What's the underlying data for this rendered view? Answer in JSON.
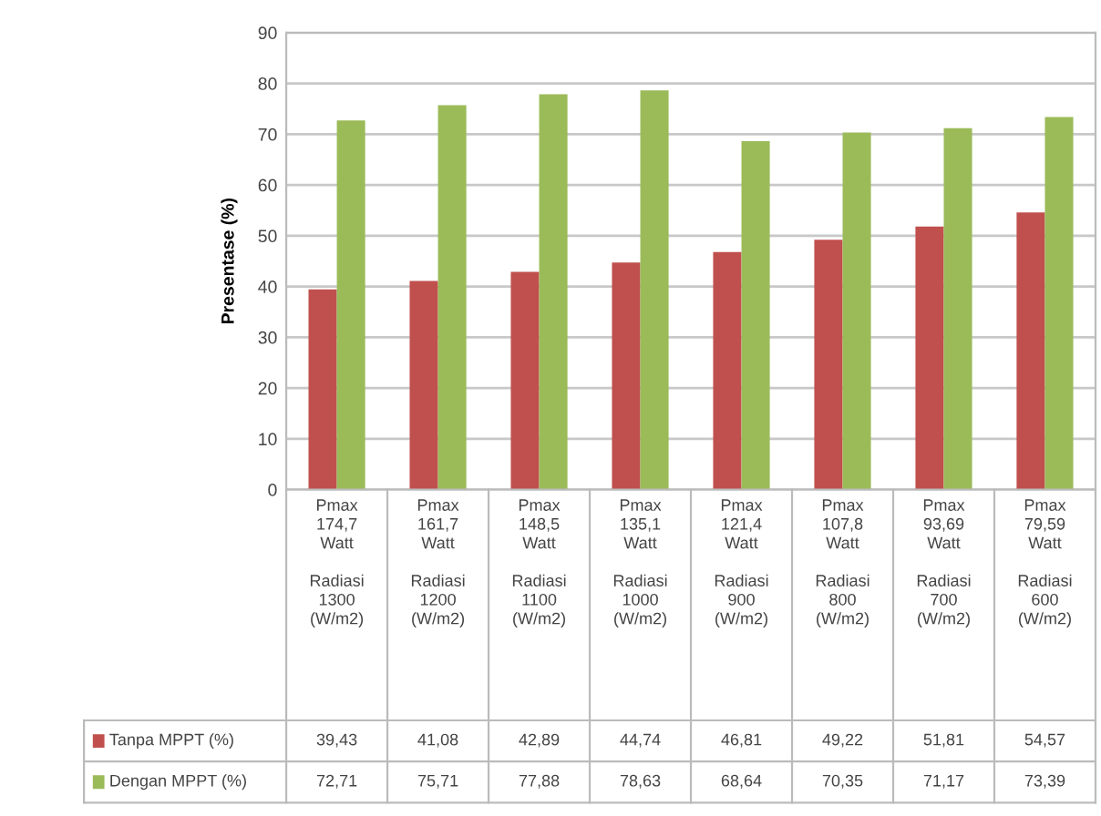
{
  "chart_data": {
    "type": "bar",
    "ylabel": "Presentase (%)",
    "categories": [
      "Pmax\n174,7\nWatt\n\nRadiasi\n1300\n(W/m2)",
      "Pmax\n161,7\nWatt\n\nRadiasi\n1200\n(W/m2)",
      "Pmax\n148,5\nWatt\n\nRadiasi\n1100\n(W/m2)",
      "Pmax\n135,1\nWatt\n\nRadiasi\n1000\n(W/m2)",
      "Pmax\n121,4\nWatt\n\nRadiasi\n900\n(W/m2)",
      "Pmax\n107,8\nWatt\n\nRadiasi\n800\n(W/m2)",
      "Pmax\n93,69\nWatt\n\nRadiasi\n700\n(W/m2)",
      "Pmax\n79,59\nWatt\n\nRadiasi\n600\n(W/m2)"
    ],
    "series": [
      {
        "name": "Tanpa MPPT (%)",
        "color": "#c0504d",
        "values": [
          39.43,
          41.08,
          42.89,
          44.74,
          46.81,
          49.22,
          51.81,
          54.57
        ],
        "value_labels": [
          "39,43",
          "41,08",
          "42,89",
          "44,74",
          "46,81",
          "49,22",
          "51,81",
          "54,57"
        ]
      },
      {
        "name": "Dengan MPPT (%)",
        "color": "#9bbb59",
        "values": [
          72.71,
          75.71,
          77.88,
          78.63,
          68.64,
          70.35,
          71.17,
          73.39
        ],
        "value_labels": [
          "72,71",
          "75,71",
          "77,88",
          "78,63",
          "68,64",
          "70,35",
          "71,17",
          "73,39"
        ]
      }
    ],
    "ylim": [
      0,
      90
    ],
    "yticks": [
      0,
      10,
      20,
      30,
      40,
      50,
      60,
      70,
      80,
      90
    ],
    "grid": "y",
    "legend": "bottom left"
  }
}
